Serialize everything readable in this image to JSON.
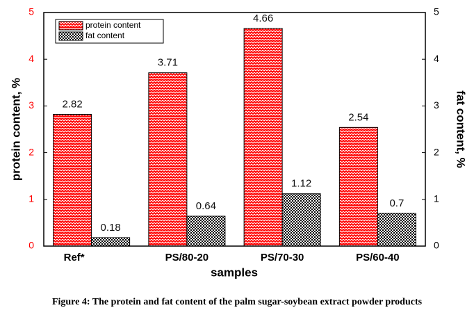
{
  "chart_data": {
    "type": "bar",
    "categories": [
      "Ref*",
      "PS/80-20",
      "PS/70-30",
      "PS/60-40"
    ],
    "series": [
      {
        "name": "protein content",
        "color": "#ff0000",
        "values": [
          2.82,
          3.71,
          4.66,
          2.54
        ]
      },
      {
        "name": "fat content",
        "color": "#000000",
        "axis": "y2",
        "values": [
          0.18,
          0.64,
          1.12,
          0.7
        ]
      }
    ],
    "ylim": [
      0,
      5
    ],
    "yticks": [
      0,
      1,
      2,
      3,
      4,
      5
    ],
    "y2lim": [
      0,
      5
    ],
    "y2ticks": [
      0,
      1,
      2,
      3,
      4,
      5
    ],
    "ylabel": "protein content, %",
    "y2label": "fat content, %",
    "xlabel": "samples",
    "legend": "upper left",
    "caption": "Figure 4: The protein and fat content of the palm sugar-soybean extract powder products"
  }
}
